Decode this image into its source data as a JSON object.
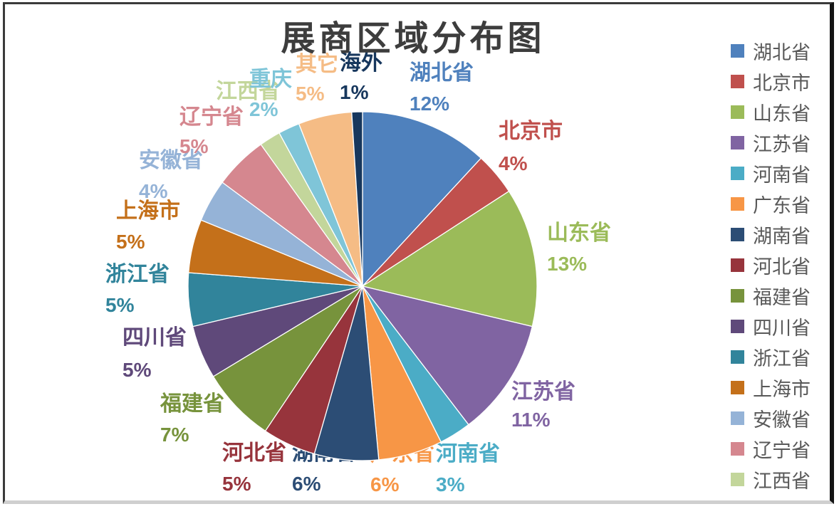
{
  "title": "展商区域分布图",
  "chart_data": {
    "type": "pie",
    "title": "展商区域分布图",
    "unit": "percent",
    "start_angle": "12 o'clock, clockwise",
    "legend_position": "right",
    "slices": [
      {
        "label": "湖北省",
        "value": 12,
        "color": "#4F81BD"
      },
      {
        "label": "北京市",
        "value": 4,
        "color": "#C0504D"
      },
      {
        "label": "山东省",
        "value": 13,
        "color": "#9BBB59"
      },
      {
        "label": "江苏省",
        "value": 11,
        "color": "#8064A2"
      },
      {
        "label": "河南省",
        "value": 3,
        "color": "#4BACC6"
      },
      {
        "label": "广东省",
        "value": 6,
        "color": "#F79646"
      },
      {
        "label": "湖南省",
        "value": 6,
        "color": "#2C4D75"
      },
      {
        "label": "河北省",
        "value": 5,
        "color": "#97343C"
      },
      {
        "label": "福建省",
        "value": 7,
        "color": "#77933C"
      },
      {
        "label": "四川省",
        "value": 5,
        "color": "#5F497A"
      },
      {
        "label": "浙江省",
        "value": 5,
        "color": "#31849B"
      },
      {
        "label": "上海市",
        "value": 5,
        "color": "#C4701A"
      },
      {
        "label": "安徽省",
        "value": 4,
        "color": "#95B3D7"
      },
      {
        "label": "辽宁省",
        "value": 5,
        "color": "#D5878F"
      },
      {
        "label": "江西省",
        "value": 2,
        "color": "#C3D69B"
      },
      {
        "label": "重庆",
        "value": 2,
        "color": "#7FC5D8"
      },
      {
        "label": "其它",
        "value": 5,
        "color": "#F5BC85"
      },
      {
        "label": "海外",
        "value": 1,
        "color": "#17375D"
      }
    ]
  },
  "legend": {
    "items": [
      "湖北省",
      "北京市",
      "山东省",
      "江苏省",
      "河南省",
      "广东省",
      "湖南省",
      "河北省",
      "福建省",
      "四川省",
      "浙江省",
      "上海市",
      "安徽省",
      "辽宁省",
      "江西省"
    ]
  }
}
